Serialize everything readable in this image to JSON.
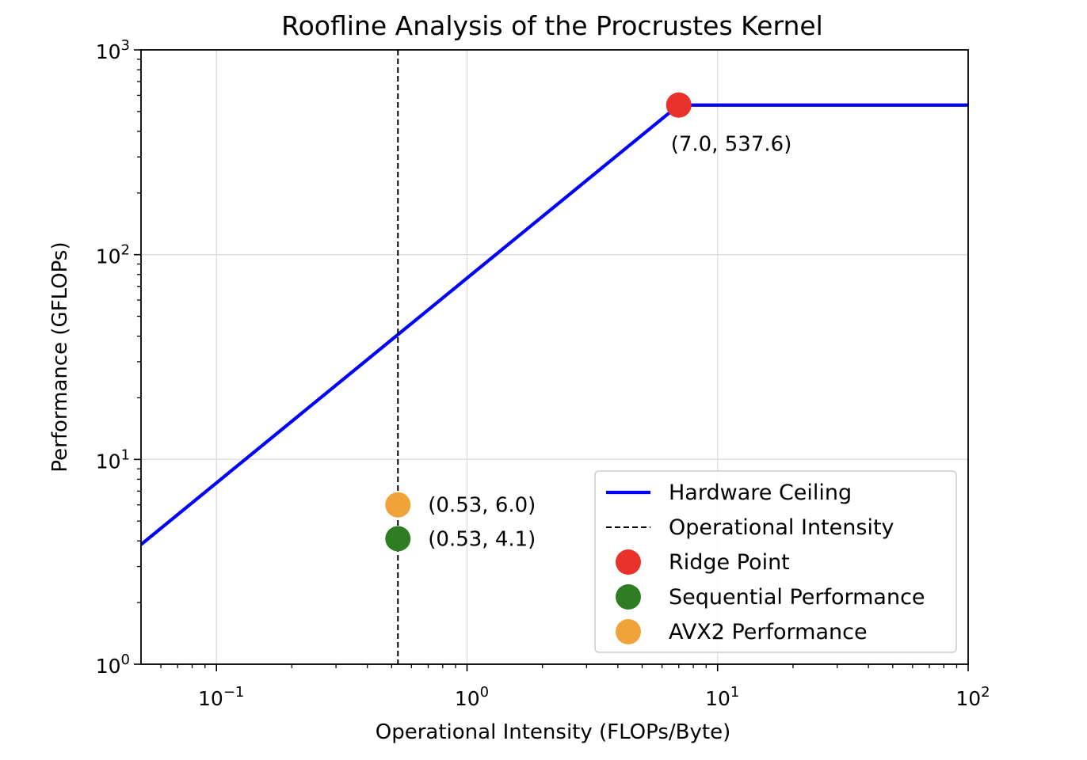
{
  "chart_data": {
    "type": "line",
    "title": "Roofline Analysis of the Procrustes Kernel",
    "xlabel": "Operational Intensity (FLOPs/Byte)",
    "ylabel": "Performance (GFLOPs)",
    "xscale": "log",
    "yscale": "log",
    "xlim": [
      0.05,
      100
    ],
    "ylim": [
      1,
      1000
    ],
    "grid": true,
    "x_ticks": [
      {
        "value": 0.1,
        "base": "10",
        "exp": "−1"
      },
      {
        "value": 1,
        "base": "10",
        "exp": "0"
      },
      {
        "value": 10,
        "base": "10",
        "exp": "1"
      },
      {
        "value": 100,
        "base": "10",
        "exp": "2"
      }
    ],
    "y_ticks": [
      {
        "value": 1,
        "base": "10",
        "exp": "0"
      },
      {
        "value": 10,
        "base": "10",
        "exp": "1"
      },
      {
        "value": 100,
        "base": "10",
        "exp": "2"
      },
      {
        "value": 1000,
        "base": "10",
        "exp": "3"
      }
    ],
    "series": [
      {
        "name": "Hardware Ceiling",
        "kind": "line",
        "color": "#0000ff",
        "style": "solid",
        "x": [
          0.05,
          7.0,
          100
        ],
        "y": [
          3.84,
          537.6,
          537.6
        ]
      },
      {
        "name": "Operational Intensity",
        "kind": "vline",
        "color": "#000000",
        "style": "dashed",
        "x": [
          0.53
        ]
      },
      {
        "name": "Ridge Point",
        "kind": "point",
        "color": "#e8312a",
        "x": [
          7.0
        ],
        "y": [
          537.6
        ]
      },
      {
        "name": "Sequential Performance",
        "kind": "point",
        "color": "#2e7d22",
        "x": [
          0.53
        ],
        "y": [
          4.1
        ]
      },
      {
        "name": "AVX2 Performance",
        "kind": "point",
        "color": "#f0a33a",
        "x": [
          0.53
        ],
        "y": [
          6.0
        ]
      }
    ],
    "annotations": [
      {
        "text": "(7.0, 537.6)",
        "x": 7.0,
        "y": 537.6,
        "placement": "below-right"
      },
      {
        "text": "(0.53, 6.0)",
        "x": 0.53,
        "y": 6.0,
        "placement": "right"
      },
      {
        "text": "(0.53, 4.1)",
        "x": 0.53,
        "y": 4.1,
        "placement": "right"
      }
    ],
    "legend": {
      "placement": "lower-right",
      "entries": [
        {
          "label": "Hardware Ceiling",
          "kind": "line",
          "color": "#0000ff",
          "style": "solid"
        },
        {
          "label": "Operational Intensity",
          "kind": "line",
          "color": "#000000",
          "style": "dashed"
        },
        {
          "label": "Ridge Point",
          "kind": "point",
          "color": "#e8312a"
        },
        {
          "label": "Sequential Performance",
          "kind": "point",
          "color": "#2e7d22"
        },
        {
          "label": "AVX2 Performance",
          "kind": "point",
          "color": "#f0a33a"
        }
      ]
    }
  }
}
